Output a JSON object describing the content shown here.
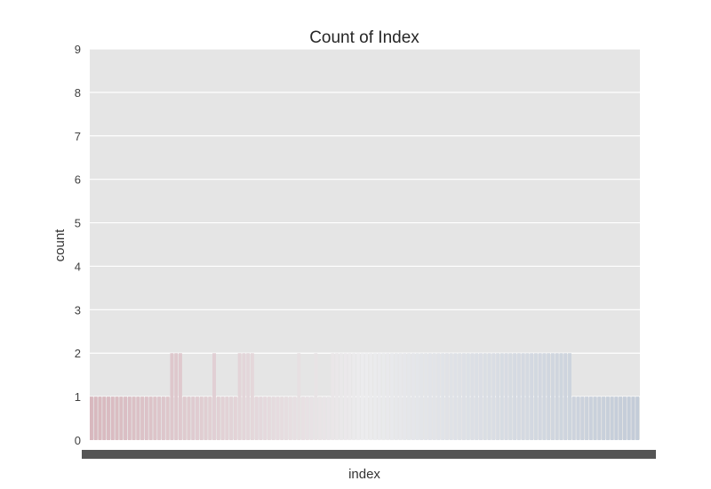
{
  "chart_data": {
    "type": "bar",
    "title": "Count of Index",
    "xlabel": "index",
    "ylabel": "count",
    "ylim": [
      0,
      9
    ],
    "yticks": [
      0,
      1,
      2,
      3,
      4,
      5,
      6,
      7,
      8,
      9
    ],
    "grid": true,
    "legend": "none",
    "palette": {
      "start": "#d8b8be",
      "middle": "#ececee",
      "end": "#c3ccd8"
    },
    "category_count": 128,
    "values": [
      1,
      1,
      1,
      1,
      1,
      1,
      1,
      1,
      1,
      1,
      1,
      1,
      1,
      1,
      1,
      1,
      1,
      1,
      1,
      2,
      2,
      2,
      1,
      1,
      1,
      1,
      1,
      1,
      1,
      2,
      1,
      1,
      1,
      1,
      1,
      2,
      2,
      2,
      2,
      1,
      1,
      1,
      1,
      1,
      1,
      1,
      1,
      1,
      1,
      2,
      1,
      1,
      1,
      2,
      1,
      1,
      1,
      2,
      2,
      2,
      2,
      2,
      2,
      2,
      2,
      2,
      2,
      2,
      2,
      2,
      2,
      2,
      2,
      2,
      2,
      2,
      2,
      2,
      2,
      2,
      2,
      2,
      2,
      2,
      2,
      2,
      2,
      2,
      2,
      2,
      2,
      2,
      2,
      2,
      2,
      2,
      2,
      2,
      2,
      2,
      2,
      2,
      2,
      2,
      2,
      2,
      2,
      2,
      2,
      2,
      2,
      2,
      2,
      2,
      1,
      1,
      1,
      1,
      1,
      1,
      1,
      1,
      1,
      1,
      1,
      1,
      1,
      1,
      1,
      1
    ]
  }
}
